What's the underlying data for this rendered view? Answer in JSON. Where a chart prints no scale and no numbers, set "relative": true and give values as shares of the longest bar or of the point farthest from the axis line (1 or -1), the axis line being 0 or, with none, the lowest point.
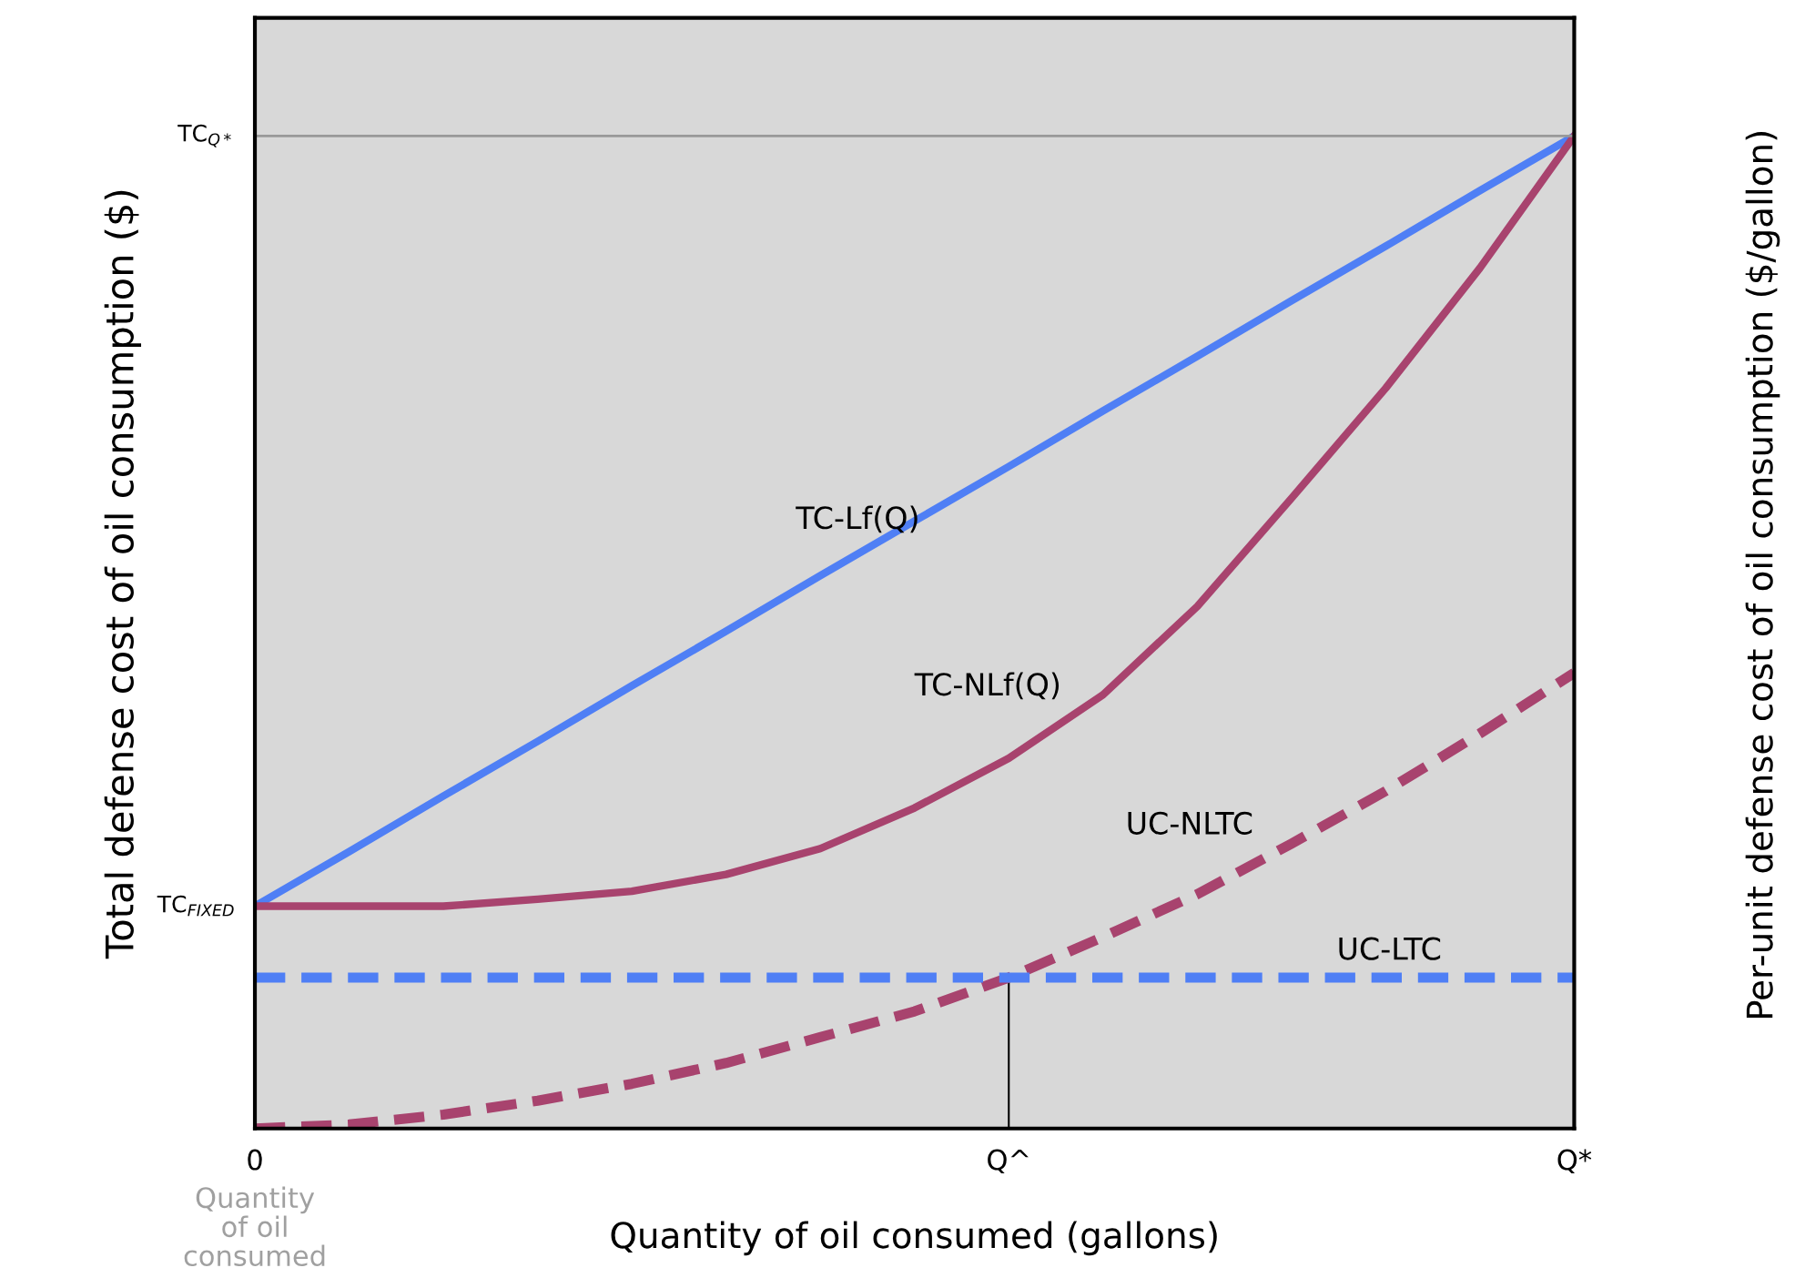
{
  "chart_data": {
    "type": "line",
    "relative": true,
    "xlabel": "Quantity of oil consumed (gallons)",
    "ylabel": "Total defense cost of oil consumption ($)",
    "y2label": "Per-unit defense cost of oil consumption ($/gallon)",
    "categories": [
      "0",
      null,
      null,
      null,
      null,
      null,
      null,
      null,
      "Q^",
      null,
      null,
      null,
      null,
      null,
      "Q*"
    ],
    "grid": false,
    "legend": false,
    "series": [
      {
        "name": "TC-Lf(Q)",
        "color": "#4f7ff5",
        "line_style": "solid",
        "values": [
          0.224,
          0.279,
          0.335,
          0.39,
          0.446,
          0.501,
          0.557,
          0.612,
          0.667,
          0.723,
          0.778,
          0.834,
          0.889,
          0.945,
          1
        ]
      },
      {
        "name": "TC-NLf(Q)",
        "color": "#a8436e",
        "line_style": "solid",
        "values": [
          0.224,
          0.224,
          0.224,
          0.231,
          0.239,
          0.256,
          0.282,
          0.323,
          0.373,
          0.437,
          0.526,
          0.635,
          0.746,
          0.867,
          1
        ]
      },
      {
        "name": "UC-NLTC",
        "color": "#a8436e",
        "line_style": "dashed",
        "values": [
          0,
          0.004,
          0.014,
          0.028,
          0.045,
          0.066,
          0.092,
          0.118,
          0.152,
          0.193,
          0.236,
          0.287,
          0.34,
          0.398,
          0.459
        ]
      },
      {
        "name": "UC-LTC",
        "color": "#4f7ff5",
        "line_style": "dashed",
        "values": [
          0.152,
          0.152,
          0.152,
          0.152,
          0.152,
          0.152,
          0.152,
          0.152,
          0.152,
          0.152,
          0.152,
          0.152,
          0.152,
          0.152,
          0.152
        ]
      },
      {
        "type": "bar",
        "color": "#000000",
        "values": [
          null,
          null,
          null,
          null,
          null,
          null,
          null,
          null,
          0.152,
          null,
          null,
          null,
          null,
          null,
          null
        ]
      }
    ],
    "ref_lines": [
      {
        "axis": "y",
        "value": 1,
        "label": "TC$_{Q*}$",
        "color": "#999999"
      }
    ],
    "annotations": [
      {
        "text": "TC$_{FIXED}$",
        "x": "0",
        "y": 0.224
      },
      "Quantity of oil consumed"
    ]
  }
}
